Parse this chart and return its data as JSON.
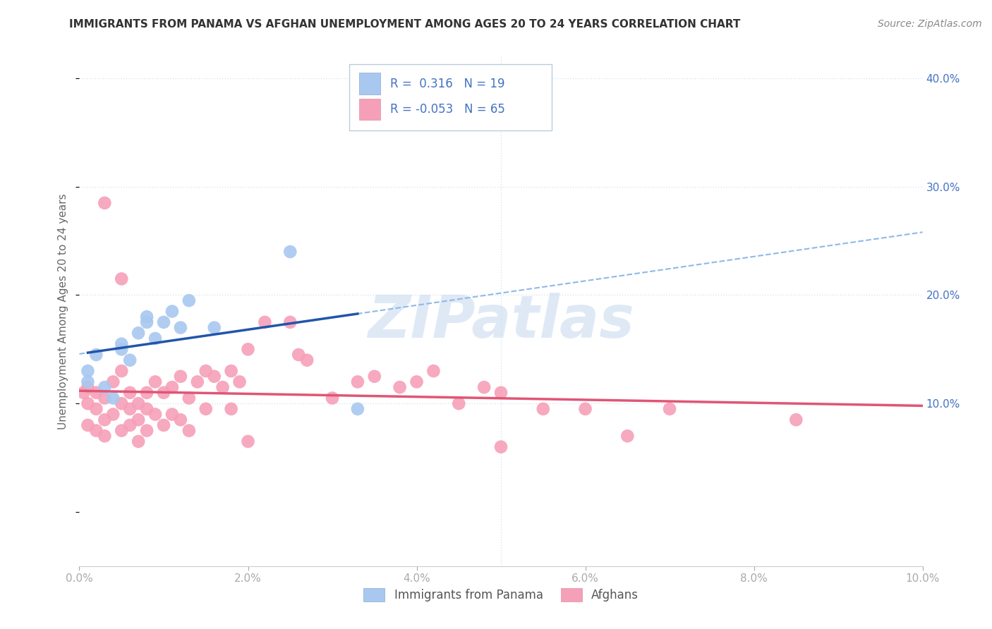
{
  "title": "IMMIGRANTS FROM PANAMA VS AFGHAN UNEMPLOYMENT AMONG AGES 20 TO 24 YEARS CORRELATION CHART",
  "source": "Source: ZipAtlas.com",
  "ylabel": "Unemployment Among Ages 20 to 24 years",
  "xlim": [
    0.0,
    0.1
  ],
  "ylim": [
    -0.05,
    0.42
  ],
  "xticklabels": [
    "0.0%",
    "2.0%",
    "4.0%",
    "6.0%",
    "8.0%",
    "10.0%"
  ],
  "xtick_vals": [
    0.0,
    0.02,
    0.04,
    0.06,
    0.08,
    0.1
  ],
  "yticks_right": [
    0.1,
    0.2,
    0.3,
    0.4
  ],
  "yticklabels_right": [
    "10.0%",
    "20.0%",
    "30.0%",
    "40.0%"
  ],
  "legend1_R": "0.316",
  "legend1_N": "19",
  "legend2_R": "-0.053",
  "legend2_N": "65",
  "legend1_label": "Immigrants from Panama",
  "legend2_label": "Afghans",
  "blue_color": "#a8c8f0",
  "blue_line_color": "#2255aa",
  "pink_color": "#f5a0b8",
  "pink_line_color": "#e05575",
  "dashed_line_color": "#90b8e8",
  "watermark": "ZIPatlas",
  "background_color": "#ffffff",
  "grid_color": "#d8e4f0",
  "blue_scatter_x": [
    0.001,
    0.001,
    0.002,
    0.003,
    0.004,
    0.005,
    0.005,
    0.006,
    0.007,
    0.008,
    0.008,
    0.009,
    0.01,
    0.011,
    0.012,
    0.013,
    0.016,
    0.025,
    0.033
  ],
  "blue_scatter_y": [
    0.12,
    0.13,
    0.145,
    0.115,
    0.105,
    0.15,
    0.155,
    0.14,
    0.165,
    0.175,
    0.18,
    0.16,
    0.175,
    0.185,
    0.17,
    0.195,
    0.17,
    0.24,
    0.095
  ],
  "pink_scatter_x": [
    0.0005,
    0.001,
    0.001,
    0.001,
    0.002,
    0.002,
    0.002,
    0.003,
    0.003,
    0.003,
    0.004,
    0.004,
    0.005,
    0.005,
    0.005,
    0.006,
    0.006,
    0.006,
    0.007,
    0.007,
    0.007,
    0.008,
    0.008,
    0.008,
    0.009,
    0.009,
    0.01,
    0.01,
    0.011,
    0.011,
    0.012,
    0.012,
    0.013,
    0.013,
    0.014,
    0.015,
    0.015,
    0.016,
    0.017,
    0.018,
    0.018,
    0.019,
    0.02,
    0.022,
    0.025,
    0.026,
    0.027,
    0.03,
    0.033,
    0.035,
    0.038,
    0.04,
    0.042,
    0.045,
    0.048,
    0.05,
    0.055,
    0.06,
    0.065,
    0.07,
    0.085,
    0.003,
    0.005,
    0.02,
    0.05
  ],
  "pink_scatter_y": [
    0.11,
    0.1,
    0.115,
    0.08,
    0.095,
    0.11,
    0.075,
    0.085,
    0.105,
    0.07,
    0.09,
    0.12,
    0.1,
    0.13,
    0.075,
    0.11,
    0.095,
    0.08,
    0.1,
    0.085,
    0.065,
    0.11,
    0.095,
    0.075,
    0.12,
    0.09,
    0.11,
    0.08,
    0.115,
    0.09,
    0.125,
    0.085,
    0.105,
    0.075,
    0.12,
    0.13,
    0.095,
    0.125,
    0.115,
    0.13,
    0.095,
    0.12,
    0.15,
    0.175,
    0.175,
    0.145,
    0.14,
    0.105,
    0.12,
    0.125,
    0.115,
    0.12,
    0.13,
    0.1,
    0.115,
    0.11,
    0.095,
    0.095,
    0.07,
    0.095,
    0.085,
    0.285,
    0.215,
    0.065,
    0.06
  ]
}
